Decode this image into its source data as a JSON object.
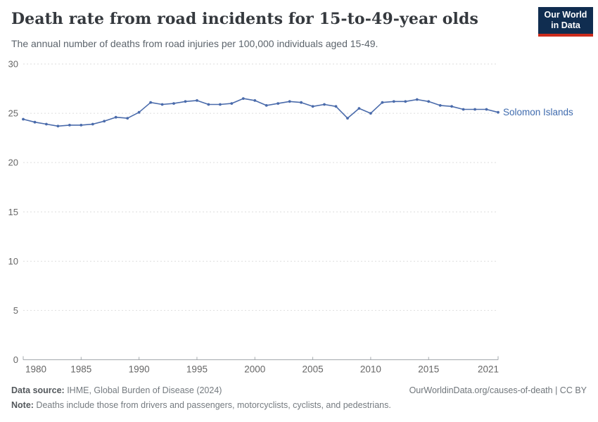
{
  "header": {
    "title": "Death rate from road incidents for 15-to-49-year olds",
    "subtitle": "The annual number of deaths from road injuries per 100,000 individuals aged 15-49.",
    "logo": {
      "line1": "Our World",
      "line2": "in Data"
    }
  },
  "chart_data": {
    "type": "line",
    "title": "Death rate from road incidents for 15-to-49-year olds",
    "xlabel": "",
    "ylabel": "",
    "xlim": [
      1980,
      2021
    ],
    "ylim": [
      0,
      30
    ],
    "x_ticks": [
      1980,
      1985,
      1990,
      1995,
      2000,
      2005,
      2010,
      2015,
      2021
    ],
    "y_ticks": [
      0,
      5,
      10,
      15,
      20,
      25,
      30
    ],
    "grid": "horizontal-dashed",
    "legend_position": "end-of-line-label",
    "series": [
      {
        "name": "Solomon Islands",
        "color": "#4a6bab",
        "x": [
          1980,
          1981,
          1982,
          1983,
          1984,
          1985,
          1986,
          1987,
          1988,
          1989,
          1990,
          1991,
          1992,
          1993,
          1994,
          1995,
          1996,
          1997,
          1998,
          1999,
          2000,
          2001,
          2002,
          2003,
          2004,
          2005,
          2006,
          2007,
          2008,
          2009,
          2010,
          2011,
          2012,
          2013,
          2014,
          2015,
          2016,
          2017,
          2018,
          2019,
          2020,
          2021
        ],
        "values": [
          24.4,
          24.1,
          23.9,
          23.7,
          23.8,
          23.8,
          23.9,
          24.2,
          24.6,
          24.5,
          25.1,
          26.1,
          25.9,
          26.0,
          26.2,
          26.3,
          25.9,
          25.9,
          26.0,
          26.5,
          26.3,
          25.8,
          26.0,
          26.2,
          26.1,
          25.7,
          25.9,
          25.7,
          24.5,
          25.5,
          25.0,
          26.1,
          26.2,
          26.2,
          26.4,
          26.2,
          25.8,
          25.7,
          25.4,
          25.4,
          25.4,
          25.1
        ]
      }
    ]
  },
  "colors": {
    "line": "#4a6bab",
    "series_label": "#3f6bae",
    "grid": "#dedede",
    "axis": "#a3a8ac",
    "tick_text": "#666666",
    "logo_bg": "#102d50",
    "logo_red": "#cc2b1c"
  },
  "footer": {
    "data_source_label": "Data source:",
    "data_source": " IHME, Global Burden of Disease (2024)",
    "note_label": "Note:",
    "note": " Deaths include those from drivers and passengers, motorcyclists, cyclists, and pedestrians.",
    "link": "OurWorldinData.org/causes-of-death | CC BY"
  }
}
